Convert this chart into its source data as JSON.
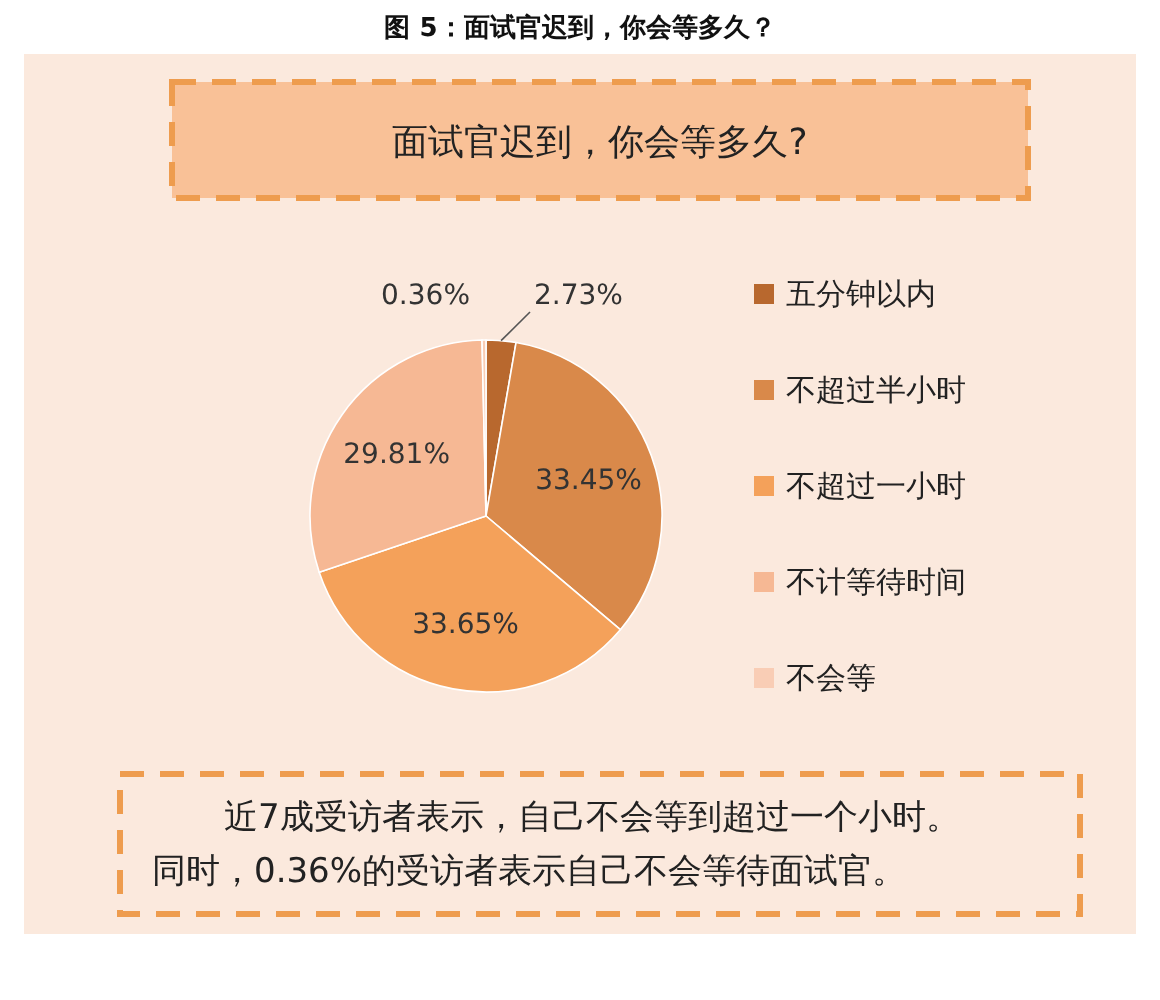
{
  "chart_data": {
    "type": "pie",
    "title": "图 5：面试官迟到，你会等多久？",
    "subtitle": "面试官迟到，你会等多久?",
    "categories": [
      "五分钟以内",
      "不超过半小时",
      "不超过一小时",
      "不计等待时间",
      "不会等"
    ],
    "values": [
      2.73,
      33.45,
      33.65,
      29.81,
      0.36
    ],
    "value_labels": [
      "2.73%",
      "33.45%",
      "33.65%",
      "29.81%",
      "0.36%"
    ],
    "colors": [
      "#b8682e",
      "#d9894a",
      "#f4a15a",
      "#f6b894",
      "#f9cdb5"
    ],
    "legend": "right",
    "annotations": [
      "近7成受访者表示，自己不会等到超过一个小时。",
      "同时，0.36%的受访者表示自己不会等待面试官。"
    ]
  }
}
